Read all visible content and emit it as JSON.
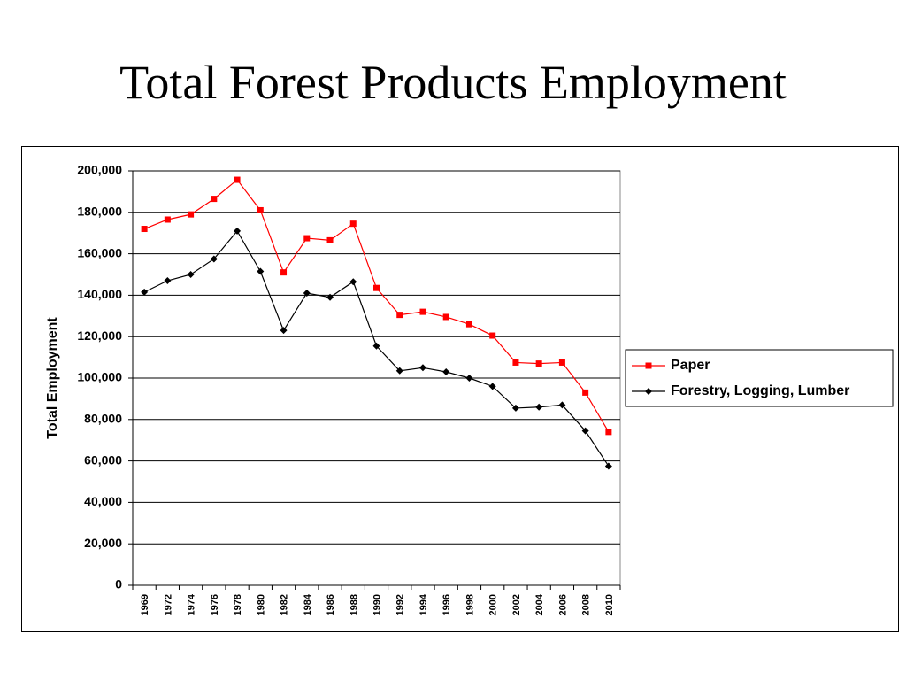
{
  "title": "Total Forest Products Employment",
  "chart_data": {
    "type": "line",
    "title": "",
    "xlabel": "",
    "ylabel": "Total Employment",
    "ylim": [
      0,
      200000
    ],
    "yticks": [
      "0",
      "20,000",
      "40,000",
      "60,000",
      "80,000",
      "100,000",
      "120,000",
      "140,000",
      "160,000",
      "180,000",
      "200,000"
    ],
    "grid": true,
    "legend": "right",
    "x": [
      "1969",
      "1972",
      "1974",
      "1976",
      "1978",
      "1980",
      "1982",
      "1984",
      "1986",
      "1988",
      "1990",
      "1992",
      "1994",
      "1996",
      "1998",
      "2000",
      "2002",
      "2004",
      "2006",
      "2008",
      "2010"
    ],
    "series": [
      {
        "name": "Paper",
        "color": "#ff0000",
        "marker": "square",
        "values": [
          172000,
          176500,
          179000,
          186500,
          195700,
          181000,
          151000,
          167500,
          166500,
          174500,
          143500,
          130500,
          132000,
          129500,
          126000,
          120500,
          107500,
          107000,
          107500,
          93000,
          74000
        ]
      },
      {
        "name": "Forestry, Logging, Lumber",
        "color": "#000000",
        "marker": "diamond",
        "values": [
          141500,
          147000,
          150000,
          157500,
          171000,
          151500,
          123000,
          141000,
          139000,
          146500,
          115500,
          103500,
          105000,
          103000,
          100000,
          96000,
          85500,
          86000,
          87000,
          74500,
          57500
        ]
      }
    ]
  }
}
